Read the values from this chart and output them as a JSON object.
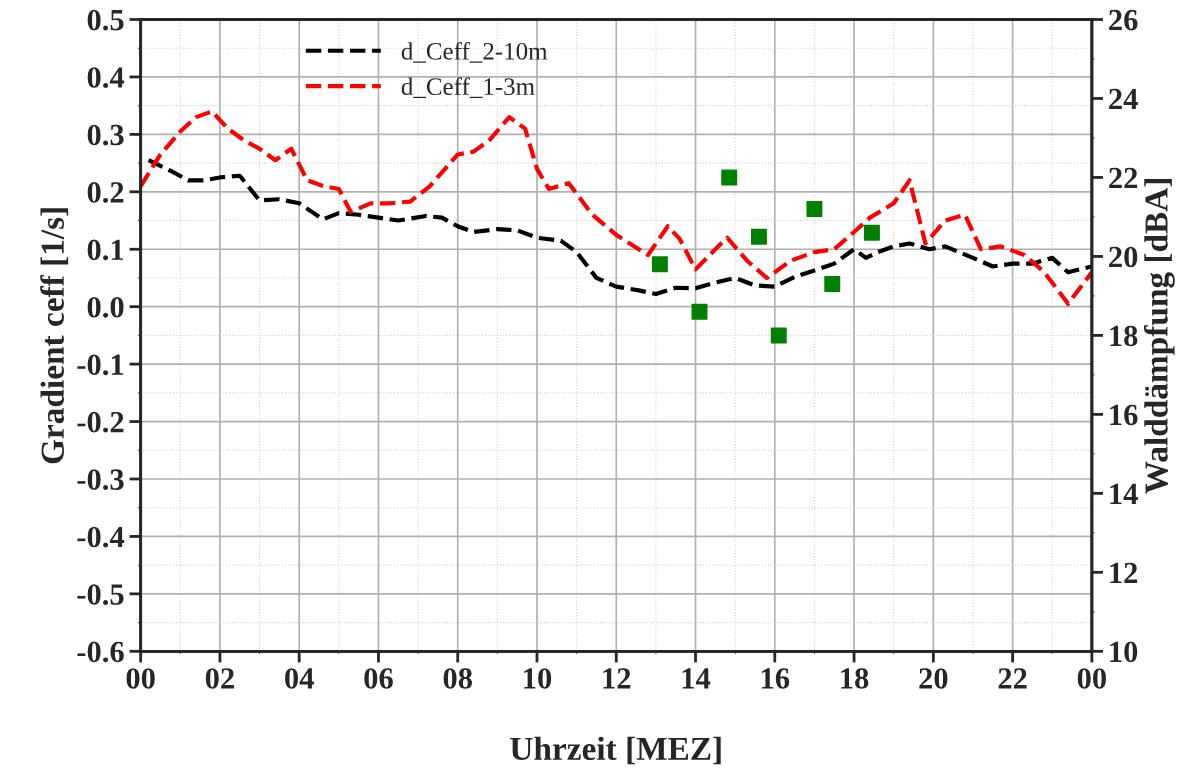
{
  "chart_data": {
    "type": "line",
    "xlabel": "Uhrzeit [MEZ]",
    "ylabel": "Gradient ceff [1/s]",
    "y2label": "Walddämpfung [dBA]",
    "xlim": [
      0,
      24
    ],
    "xticks": [
      {
        "value": 0,
        "label": "00"
      },
      {
        "value": 2,
        "label": "02"
      },
      {
        "value": 4,
        "label": "04"
      },
      {
        "value": 6,
        "label": "06"
      },
      {
        "value": 8,
        "label": "08"
      },
      {
        "value": 10,
        "label": "10"
      },
      {
        "value": 12,
        "label": "12"
      },
      {
        "value": 14,
        "label": "14"
      },
      {
        "value": 16,
        "label": "16"
      },
      {
        "value": 18,
        "label": "18"
      },
      {
        "value": 20,
        "label": "20"
      },
      {
        "value": 22,
        "label": "22"
      },
      {
        "value": 24,
        "label": "00"
      }
    ],
    "ylim": [
      -0.6,
      0.5
    ],
    "yticks": [
      {
        "value": -0.6,
        "label": "-0.6"
      },
      {
        "value": -0.5,
        "label": "-0.5"
      },
      {
        "value": -0.4,
        "label": "-0.4"
      },
      {
        "value": -0.3,
        "label": "-0.3"
      },
      {
        "value": -0.2,
        "label": "-0.2"
      },
      {
        "value": -0.1,
        "label": "-0.1"
      },
      {
        "value": 0,
        "label": "0.0"
      },
      {
        "value": 0.1,
        "label": "0.1"
      },
      {
        "value": 0.2,
        "label": "0.2"
      },
      {
        "value": 0.3,
        "label": "0.3"
      },
      {
        "value": 0.4,
        "label": "0.4"
      },
      {
        "value": 0.5,
        "label": "0.5"
      }
    ],
    "y2lim": [
      10,
      26
    ],
    "y2ticks": [
      10,
      12,
      14,
      16,
      18,
      20,
      22,
      24,
      26
    ],
    "grid": true,
    "legend": "top left",
    "line_style": "dashed",
    "marker": "none",
    "series": [
      {
        "name": "d_Ceff_2-10m",
        "color": "#000000",
        "x": [
          0.2,
          0.8,
          1.2,
          1.6,
          2,
          2.5,
          3,
          3.5,
          4,
          4.6,
          5,
          5.5,
          6,
          6.5,
          7.2,
          7.6,
          8,
          8.4,
          9,
          9.5,
          10,
          10.6,
          11,
          11.5,
          12,
          12.6,
          13,
          13.5,
          14,
          14.5,
          15,
          15.5,
          16,
          16.5,
          17,
          17.5,
          18,
          18.3,
          18.6,
          19,
          19.4,
          19.9,
          20.3,
          21,
          21.5,
          22,
          22.5,
          23,
          23.4,
          24
        ],
        "values": [
          0.255,
          0.235,
          0.22,
          0.22,
          0.225,
          0.228,
          0.185,
          0.187,
          0.18,
          0.152,
          0.163,
          0.16,
          0.155,
          0.15,
          0.158,
          0.155,
          0.14,
          0.13,
          0.135,
          0.133,
          0.12,
          0.115,
          0.095,
          0.05,
          0.035,
          0.028,
          0.022,
          0.033,
          0.032,
          0.042,
          0.05,
          0.037,
          0.035,
          0.052,
          0.063,
          0.075,
          0.1,
          0.085,
          0.095,
          0.105,
          0.11,
          0.1,
          0.105,
          0.085,
          0.07,
          0.075,
          0.075,
          0.085,
          0.06,
          0.07
        ]
      },
      {
        "name": "d_Ceff_1-3m",
        "color": "#ff0000",
        "x": [
          0,
          0.5,
          1,
          1.4,
          1.8,
          2.2,
          2.6,
          3,
          3.4,
          3.8,
          4.2,
          4.6,
          5,
          5.3,
          5.8,
          6.3,
          6.8,
          7.3,
          8,
          8.4,
          8.8,
          9.3,
          9.7,
          10,
          10.3,
          10.8,
          11.4,
          12,
          12.8,
          13.3,
          13.6,
          14,
          14.5,
          14.8,
          15.3,
          15.8,
          16.4,
          17,
          17.5,
          18,
          18.4,
          19,
          19.4,
          19.8,
          20.3,
          20.8,
          21.2,
          21.7,
          22.3,
          22.8,
          23.4,
          24
        ],
        "values": [
          0.21,
          0.265,
          0.305,
          0.33,
          0.34,
          0.31,
          0.29,
          0.275,
          0.255,
          0.275,
          0.22,
          0.21,
          0.205,
          0.165,
          0.18,
          0.18,
          0.183,
          0.21,
          0.265,
          0.27,
          0.29,
          0.33,
          0.31,
          0.24,
          0.205,
          0.215,
          0.16,
          0.125,
          0.09,
          0.14,
          0.118,
          0.065,
          0.1,
          0.12,
          0.08,
          0.05,
          0.08,
          0.095,
          0.1,
          0.13,
          0.155,
          0.18,
          0.22,
          0.11,
          0.15,
          0.16,
          0.1,
          0.105,
          0.09,
          0.06,
          0.005,
          0.06
        ]
      },
      {
        "type": "scatter",
        "axis": "y2",
        "color": "#008000",
        "marker": "square",
        "x": [
          13.1,
          14.1,
          14.85,
          15.6,
          16.1,
          17.0,
          17.45,
          18.45
        ],
        "values": [
          19.8,
          18.6,
          22.0,
          20.5,
          18.0,
          21.2,
          19.3,
          20.6
        ]
      }
    ]
  }
}
